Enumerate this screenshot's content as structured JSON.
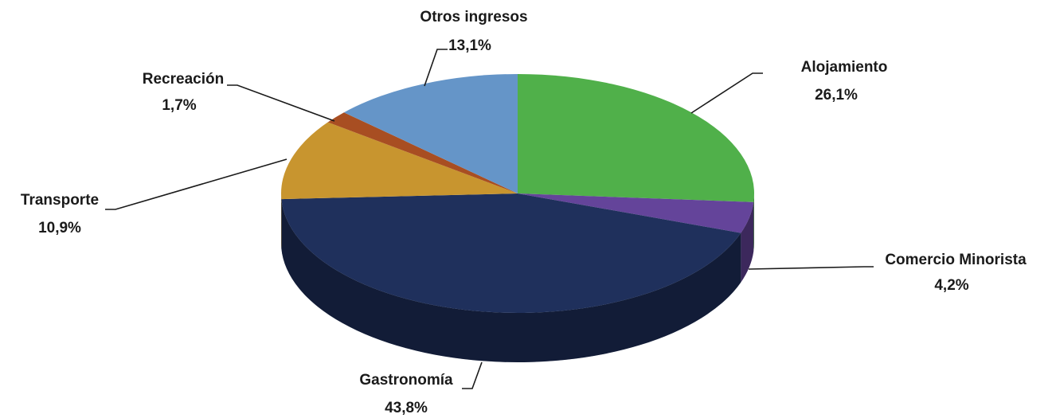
{
  "chart_data": {
    "type": "pie",
    "categories": [
      "Alojamiento",
      "Comercio Minorista",
      "Gastronomía",
      "Transporte",
      "Recreación",
      "Otros ingresos"
    ],
    "values": [
      26.1,
      4.2,
      43.8,
      10.9,
      1.7,
      13.1
    ],
    "value_labels": [
      "26,1%",
      "4,2%",
      "43,8%",
      "10,9%",
      "1,7%",
      "13,1%"
    ],
    "colors": [
      "#50b04a",
      "#64449a",
      "#1f305c",
      "#c8952f",
      "#a84e22",
      "#6595c8"
    ]
  }
}
